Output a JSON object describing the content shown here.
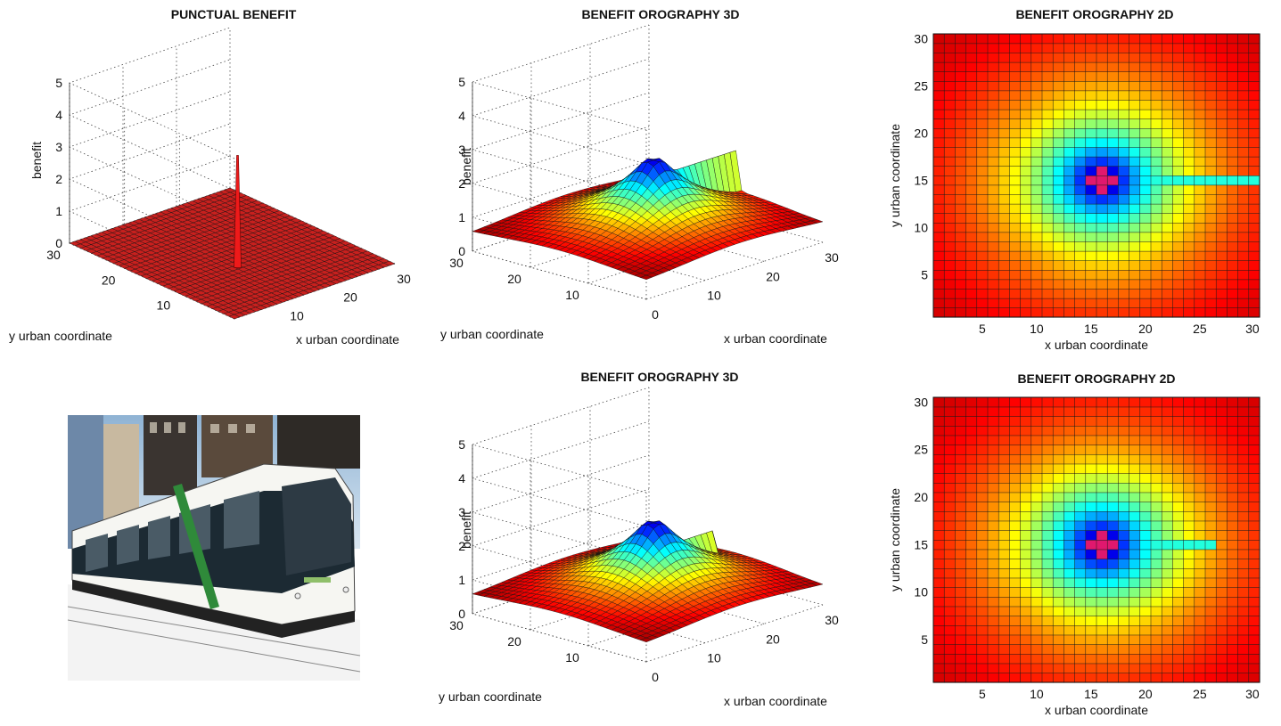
{
  "charts": {
    "punctual": {
      "title": "PUNCTUAL BENEFIT",
      "xlabel": "x urban coordinate",
      "ylabel": "y urban coordinate",
      "zlabel": "benefit",
      "zticks": [
        "0",
        "1",
        "2",
        "3",
        "4",
        "5"
      ],
      "yticks": [
        "10",
        "20",
        "30"
      ],
      "xticks": [
        "10",
        "20",
        "30"
      ]
    },
    "oro3d_top": {
      "title": "BENEFIT OROGRAPHY 3D",
      "xlabel": "x urban coordinate",
      "ylabel": "y urban coordinate",
      "zlabel": "benefit",
      "zticks": [
        "0",
        "1",
        "2",
        "3",
        "4",
        "5"
      ],
      "yticks": [
        "10",
        "20",
        "30"
      ],
      "xticks": [
        "0",
        "10",
        "20",
        "30"
      ]
    },
    "oro3d_bottom": {
      "title": "BENEFIT OROGRAPHY 3D",
      "xlabel": "x urban coordinate",
      "ylabel": "y urban coordinate",
      "zlabel": "benefit",
      "zticks": [
        "0",
        "1",
        "2",
        "3",
        "4",
        "5"
      ],
      "yticks": [
        "10",
        "20",
        "30"
      ],
      "xticks": [
        "0",
        "10",
        "20",
        "30"
      ]
    },
    "oro2d_top": {
      "title": "BENEFIT OROGRAPHY 2D",
      "xlabel": "x urban coordinate",
      "ylabel": "y urban coordinate",
      "xticks": [
        "5",
        "10",
        "15",
        "20",
        "25",
        "30"
      ],
      "yticks": [
        "5",
        "10",
        "15",
        "20",
        "25",
        "30"
      ]
    },
    "oro2d_bottom": {
      "title": "BENEFIT OROGRAPHY 2D",
      "xlabel": "x urban coordinate",
      "ylabel": "y urban coordinate",
      "xticks": [
        "5",
        "10",
        "15",
        "20",
        "25",
        "30"
      ],
      "yticks": [
        "5",
        "10",
        "15",
        "20",
        "25",
        "30"
      ]
    }
  },
  "chart_data": [
    {
      "type": "surface",
      "title": "PUNCTUAL BENEFIT",
      "xlabel": "x urban coordinate",
      "ylabel": "y urban coordinate",
      "zlabel": "benefit",
      "xlim": [
        0,
        30
      ],
      "ylim": [
        0,
        30
      ],
      "zlim": [
        0,
        5
      ],
      "grid": true,
      "base_value": 0,
      "peak": {
        "x": 16,
        "y": 15,
        "z": 3
      },
      "colors": {
        "surface": "#c8201e"
      }
    },
    {
      "type": "surface",
      "title": "BENEFIT OROGRAPHY 3D",
      "xlabel": "x urban coordinate",
      "ylabel": "y urban coordinate",
      "zlabel": "benefit",
      "xlim": [
        0,
        30
      ],
      "ylim": [
        0,
        30
      ],
      "zlim": [
        0,
        5
      ],
      "grid": true,
      "peak": {
        "x": 16,
        "y": 15,
        "z": 2.5
      },
      "corner_value": 0.5,
      "ridge": {
        "y": 15,
        "x_from": 16,
        "x_to": 30,
        "z": 2.0
      }
    },
    {
      "type": "heatmap",
      "title": "BENEFIT OROGRAPHY 2D",
      "xlabel": "x urban coordinate",
      "ylabel": "y urban coordinate",
      "xlim": [
        1,
        30
      ],
      "ylim": [
        1,
        30
      ],
      "peak": {
        "x": 16,
        "y": 15
      },
      "ridge": {
        "y": 15,
        "x_from": 16,
        "x_to": 30
      }
    },
    {
      "type": "surface",
      "title": "BENEFIT OROGRAPHY 3D",
      "xlabel": "x urban coordinate",
      "ylabel": "y urban coordinate",
      "zlabel": "benefit",
      "xlim": [
        0,
        30
      ],
      "ylim": [
        0,
        30
      ],
      "zlim": [
        0,
        5
      ],
      "grid": true,
      "peak": {
        "x": 16,
        "y": 15,
        "z": 2.5
      },
      "corner_value": 0.5,
      "ridge": {
        "y": 15,
        "x_from": 16,
        "x_to": 26,
        "z": 1.7
      }
    },
    {
      "type": "heatmap",
      "title": "BENEFIT OROGRAPHY 2D",
      "xlabel": "x urban coordinate",
      "ylabel": "y urban coordinate",
      "xlim": [
        1,
        30
      ],
      "ylim": [
        1,
        30
      ],
      "peak": {
        "x": 16,
        "y": 15
      },
      "ridge": {
        "y": 15,
        "x_from": 16,
        "x_to": 26
      }
    }
  ]
}
